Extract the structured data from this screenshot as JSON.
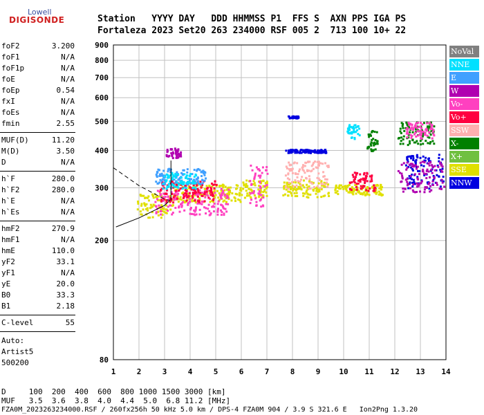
{
  "logo": {
    "line1": "Lowell",
    "line2": "DIGISONDE"
  },
  "header": {
    "row1": "Station   YYYY DAY   DDD HHMMSS P1  FFS S  AXN PPS IGA PS",
    "row2": "Fortaleza 2023 Set20 263 234000 RSF 005 2  713 100 10+ 22"
  },
  "params_group1": [
    {
      "key": "foF2",
      "value": "3.200"
    },
    {
      "key": "foF1",
      "value": "N/A"
    },
    {
      "key": "foF1p",
      "value": "N/A"
    },
    {
      "key": "foE",
      "value": "N/A"
    },
    {
      "key": "foEp",
      "value": "0.54"
    },
    {
      "key": "fxI",
      "value": "N/A"
    },
    {
      "key": "foEs",
      "value": "N/A"
    },
    {
      "key": "fmin",
      "value": "2.55"
    }
  ],
  "params_group2": [
    {
      "key": "MUF(D)",
      "value": "11.20"
    },
    {
      "key": "M(D)",
      "value": "3.50"
    },
    {
      "key": "D",
      "value": "N/A"
    }
  ],
  "params_group3": [
    {
      "key": "h`F",
      "value": "280.0"
    },
    {
      "key": "h`F2",
      "value": "280.0"
    },
    {
      "key": "h`E",
      "value": "N/A"
    },
    {
      "key": "h`Es",
      "value": "N/A"
    }
  ],
  "params_group4": [
    {
      "key": "hmF2",
      "value": "270.9"
    },
    {
      "key": "hmF1",
      "value": "N/A"
    },
    {
      "key": "hmE",
      "value": "110.0"
    },
    {
      "key": "yF2",
      "value": "33.1"
    },
    {
      "key": "yF1",
      "value": "N/A"
    },
    {
      "key": "yE",
      "value": "20.0"
    },
    {
      "key": "B0",
      "value": "33.3"
    },
    {
      "key": "B1",
      "value": "2.18"
    }
  ],
  "clevel": {
    "key": "C-level",
    "value": "55"
  },
  "autoscaling": {
    "line1": "Auto:",
    "line2": "Artist5",
    "line3": "500200"
  },
  "footer": {
    "d_row": "D     100  200  400  600  800 1000 1500 3000 [km]",
    "muf_row": "MUF   3.5  3.6  3.8  4.0  4.4  5.0  6.8 11.2 [MHz]",
    "file_row": "FZA0M_2023263234000.RSF / 260fx256h 50 kHz 5.0 km / DPS-4 FZA0M 904 / 3.9 S 321.6 E   Ion2Png 1.3.20"
  },
  "legend": [
    {
      "label": "NoVal",
      "color": "#808080"
    },
    {
      "label": "NNE",
      "color": "#00e0ff"
    },
    {
      "label": "E",
      "color": "#40a0ff"
    },
    {
      "label": "W",
      "color": "#b000b0"
    },
    {
      "label": "Vo-",
      "color": "#ff40c0"
    },
    {
      "label": "Vo+",
      "color": "#ff0040"
    },
    {
      "label": "SSW",
      "color": "#ffb0b0"
    },
    {
      "label": "X-",
      "color": "#008000"
    },
    {
      "label": "X+",
      "color": "#70c040"
    },
    {
      "label": "SSE",
      "color": "#e0e000"
    },
    {
      "label": "NNW",
      "color": "#0000e0"
    }
  ],
  "chart_data": {
    "type": "scatter",
    "title": "",
    "xlabel": "",
    "ylabel": "",
    "xlim": [
      1,
      14
    ],
    "ylim": [
      80,
      900
    ],
    "y_scale": "log",
    "grid": true,
    "x_ticks": [
      "1",
      "2",
      "3",
      "4",
      "5",
      "6",
      "7",
      "8",
      "9",
      "10",
      "11",
      "12",
      "13",
      "14"
    ],
    "x_tick_values": [
      1,
      2,
      3,
      4,
      5,
      6,
      7,
      8,
      9,
      10,
      11,
      12,
      13,
      14
    ],
    "y_ticks": [
      "80",
      "200",
      "300",
      "400",
      "500",
      "600",
      "700",
      "800",
      "900"
    ],
    "y_tick_values": [
      80,
      200,
      300,
      400,
      500,
      600,
      700,
      800,
      900
    ],
    "clusters": [
      {
        "series": "SSE",
        "x": [
          1.9,
          3.3
        ],
        "y": [
          240,
          290
        ]
      },
      {
        "series": "SSE",
        "x": [
          3.3,
          6.0
        ],
        "y": [
          270,
          310
        ]
      },
      {
        "series": "Vo-",
        "x": [
          2.6,
          5.5
        ],
        "y": [
          245,
          300
        ]
      },
      {
        "series": "Vo+",
        "x": [
          2.8,
          5.0
        ],
        "y": [
          270,
          320
        ]
      },
      {
        "series": "E",
        "x": [
          2.6,
          4.6
        ],
        "y": [
          310,
          350
        ]
      },
      {
        "series": "W",
        "x": [
          3.0,
          3.6
        ],
        "y": [
          380,
          410
        ]
      },
      {
        "series": "NNE",
        "x": [
          2.9,
          4.2
        ],
        "y": [
          300,
          340
        ]
      },
      {
        "series": "SSE",
        "x": [
          6.0,
          7.0
        ],
        "y": [
          280,
          320
        ]
      },
      {
        "series": "Vo-",
        "x": [
          6.3,
          7.0
        ],
        "y": [
          260,
          360
        ]
      },
      {
        "series": "SSE",
        "x": [
          7.6,
          9.4
        ],
        "y": [
          280,
          320
        ]
      },
      {
        "series": "SSW",
        "x": [
          7.7,
          9.4
        ],
        "y": [
          300,
          370
        ]
      },
      {
        "series": "NNW",
        "x": [
          7.7,
          9.3
        ],
        "y": [
          395,
          405
        ]
      },
      {
        "series": "NNW",
        "x": [
          7.8,
          8.2
        ],
        "y": [
          515,
          525
        ]
      },
      {
        "series": "SSE",
        "x": [
          9.6,
          11.5
        ],
        "y": [
          285,
          310
        ]
      },
      {
        "series": "Vo+",
        "x": [
          10.2,
          11.2
        ],
        "y": [
          295,
          340
        ]
      },
      {
        "series": "NNE",
        "x": [
          10.1,
          10.6
        ],
        "y": [
          440,
          490
        ]
      },
      {
        "series": "X-",
        "x": [
          10.8,
          11.3
        ],
        "y": [
          400,
          470
        ]
      },
      {
        "series": "NNW",
        "x": [
          12.4,
          13.9
        ],
        "y": [
          300,
          390
        ]
      },
      {
        "series": "W",
        "x": [
          12.1,
          13.9
        ],
        "y": [
          290,
          370
        ]
      },
      {
        "series": "X-",
        "x": [
          12.1,
          13.5
        ],
        "y": [
          420,
          500
        ]
      },
      {
        "series": "Vo-",
        "x": [
          12.4,
          13.5
        ],
        "y": [
          440,
          500
        ]
      }
    ],
    "profile_curve": {
      "solid": [
        [
          1.1,
          222
        ],
        [
          2.0,
          238
        ],
        [
          3.0,
          262
        ],
        [
          3.2,
          272
        ]
      ],
      "dashed": [
        [
          1.0,
          350
        ],
        [
          2.0,
          305
        ],
        [
          3.0,
          275
        ],
        [
          3.2,
          272
        ]
      ],
      "vertical": {
        "x": 3.25,
        "y": [
          272,
          370
        ]
      }
    }
  }
}
